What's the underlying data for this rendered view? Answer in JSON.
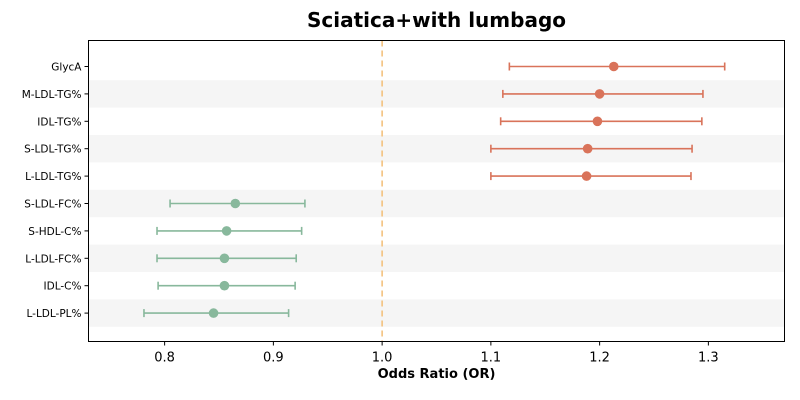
{
  "chart_data": {
    "type": "forest",
    "title": "Sciatica+with lumbago",
    "xlabel": "Odds Ratio (OR)",
    "xlim": [
      0.73,
      1.37
    ],
    "xticks": [
      0.8,
      0.9,
      1.0,
      1.1,
      1.2,
      1.3
    ],
    "xtick_labels": [
      "0.8",
      "0.9",
      "1.0",
      "1.1",
      "1.2",
      "1.3"
    ],
    "reference_line": 1.0,
    "grid": false,
    "colors": {
      "risk": "#d9735a",
      "protective": "#88b89c",
      "reference_line": "#f4c27e",
      "band": "#f5f5f5"
    },
    "rows": [
      {
        "label": "GlycA",
        "or": 1.213,
        "lower": 1.117,
        "upper": 1.315,
        "group": "risk"
      },
      {
        "label": "M-LDL-TG%",
        "or": 1.2,
        "lower": 1.111,
        "upper": 1.295,
        "group": "risk"
      },
      {
        "label": "IDL-TG%",
        "or": 1.198,
        "lower": 1.109,
        "upper": 1.294,
        "group": "risk"
      },
      {
        "label": "S-LDL-TG%",
        "or": 1.189,
        "lower": 1.1,
        "upper": 1.285,
        "group": "risk"
      },
      {
        "label": "L-LDL-TG%",
        "or": 1.188,
        "lower": 1.1,
        "upper": 1.284,
        "group": "risk"
      },
      {
        "label": "S-LDL-FC%",
        "or": 0.865,
        "lower": 0.805,
        "upper": 0.929,
        "group": "protective"
      },
      {
        "label": "S-HDL-C%",
        "or": 0.857,
        "lower": 0.793,
        "upper": 0.926,
        "group": "protective"
      },
      {
        "label": "L-LDL-FC%",
        "or": 0.855,
        "lower": 0.793,
        "upper": 0.921,
        "group": "protective"
      },
      {
        "label": "IDL-C%",
        "or": 0.855,
        "lower": 0.794,
        "upper": 0.92,
        "group": "protective"
      },
      {
        "label": "L-LDL-PL%",
        "or": 0.845,
        "lower": 0.781,
        "upper": 0.914,
        "group": "protective"
      }
    ]
  }
}
